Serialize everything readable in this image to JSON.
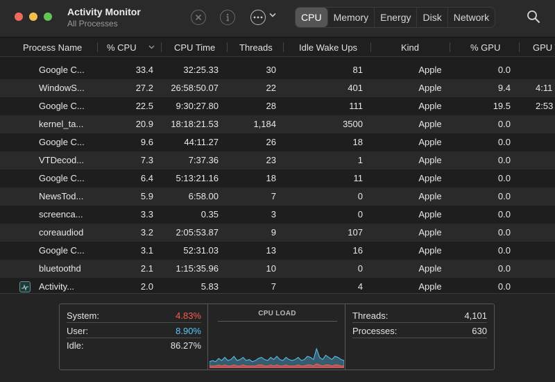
{
  "window": {
    "title": "Activity Monitor",
    "subtitle": "All Processes"
  },
  "toolbar": {
    "stop_icon": "stop-process-icon",
    "info_icon": "info-icon",
    "more_icon": "ellipsis-icon",
    "more_chevron": "⌄",
    "tabs": [
      "CPU",
      "Memory",
      "Energy",
      "Disk",
      "Network"
    ],
    "active_tab": "CPU",
    "search_icon": "search-icon"
  },
  "columns": {
    "name": "Process Name",
    "cpu": "% CPU",
    "cpu_time": "CPU Time",
    "threads": "Threads",
    "idle_wake_ups": "Idle Wake Ups",
    "kind": "Kind",
    "gpu": "% GPU",
    "gpu_time": "GPU T",
    "sort_indicator": "⌄"
  },
  "processes": [
    {
      "name": "Google C...",
      "cpu": "33.4",
      "cpu_time": "32:25.33",
      "threads": "30",
      "idle": "81",
      "kind": "Apple",
      "gpu": "0.0",
      "gpu_time": ""
    },
    {
      "name": "WindowS...",
      "cpu": "27.2",
      "cpu_time": "26:58:50.07",
      "threads": "22",
      "idle": "401",
      "kind": "Apple",
      "gpu": "9.4",
      "gpu_time": "4:11"
    },
    {
      "name": "Google C...",
      "cpu": "22.5",
      "cpu_time": "9:30:27.80",
      "threads": "28",
      "idle": "111",
      "kind": "Apple",
      "gpu": "19.5",
      "gpu_time": "2:53"
    },
    {
      "name": "kernel_ta...",
      "cpu": "20.9",
      "cpu_time": "18:18:21.53",
      "threads": "1,184",
      "idle": "3500",
      "kind": "Apple",
      "gpu": "0.0",
      "gpu_time": ""
    },
    {
      "name": "Google C...",
      "cpu": "9.6",
      "cpu_time": "44:11.27",
      "threads": "26",
      "idle": "18",
      "kind": "Apple",
      "gpu": "0.0",
      "gpu_time": ""
    },
    {
      "name": "VTDecod...",
      "cpu": "7.3",
      "cpu_time": "7:37.36",
      "threads": "23",
      "idle": "1",
      "kind": "Apple",
      "gpu": "0.0",
      "gpu_time": ""
    },
    {
      "name": "Google C...",
      "cpu": "6.4",
      "cpu_time": "5:13:21.16",
      "threads": "18",
      "idle": "11",
      "kind": "Apple",
      "gpu": "0.0",
      "gpu_time": ""
    },
    {
      "name": "NewsTod...",
      "cpu": "5.9",
      "cpu_time": "6:58.00",
      "threads": "7",
      "idle": "0",
      "kind": "Apple",
      "gpu": "0.0",
      "gpu_time": ""
    },
    {
      "name": "screenca...",
      "cpu": "3.3",
      "cpu_time": "0.35",
      "threads": "3",
      "idle": "0",
      "kind": "Apple",
      "gpu": "0.0",
      "gpu_time": ""
    },
    {
      "name": "coreaudiod",
      "cpu": "3.2",
      "cpu_time": "2:05:53.87",
      "threads": "9",
      "idle": "107",
      "kind": "Apple",
      "gpu": "0.0",
      "gpu_time": ""
    },
    {
      "name": "Google C...",
      "cpu": "3.1",
      "cpu_time": "52:31.03",
      "threads": "13",
      "idle": "16",
      "kind": "Apple",
      "gpu": "0.0",
      "gpu_time": ""
    },
    {
      "name": "bluetoothd",
      "cpu": "2.1",
      "cpu_time": "1:15:35.96",
      "threads": "10",
      "idle": "0",
      "kind": "Apple",
      "gpu": "0.0",
      "gpu_time": ""
    },
    {
      "name": "Activity...",
      "cpu": "2.0",
      "cpu_time": "5.83",
      "threads": "7",
      "idle": "4",
      "kind": "Apple",
      "gpu": "0.0",
      "gpu_time": "",
      "icon": "activity-monitor-app-icon"
    }
  ],
  "summary": {
    "system_label": "System:",
    "system_value": "4.83%",
    "user_label": "User:",
    "user_value": "8.90%",
    "idle_label": "Idle:",
    "idle_value": "86.27%",
    "cpu_load_title": "CPU LOAD",
    "threads_label": "Threads:",
    "threads_value": "4,101",
    "processes_label": "Processes:",
    "processes_value": "630"
  },
  "colors": {
    "system": "#ff5a52",
    "user": "#5ac8fa"
  },
  "cpu_load_series": {
    "user": [
      4,
      5,
      4,
      6,
      5,
      7,
      5,
      6,
      8,
      5,
      6,
      7,
      5,
      6,
      4,
      5,
      6,
      7,
      6,
      5,
      7,
      6,
      8,
      6,
      5,
      7,
      6,
      5,
      6,
      7,
      5,
      6,
      8,
      7,
      6,
      14,
      7,
      6,
      9,
      7,
      6,
      8,
      7,
      6,
      5
    ],
    "system": [
      2,
      2,
      2,
      3,
      2,
      3,
      2,
      2,
      3,
      2,
      2,
      3,
      2,
      2,
      2,
      2,
      3,
      3,
      2,
      2,
      3,
      2,
      3,
      2,
      2,
      3,
      2,
      2,
      2,
      3,
      2,
      2,
      3,
      3,
      2,
      4,
      3,
      2,
      3,
      3,
      2,
      3,
      3,
      2,
      2
    ]
  }
}
